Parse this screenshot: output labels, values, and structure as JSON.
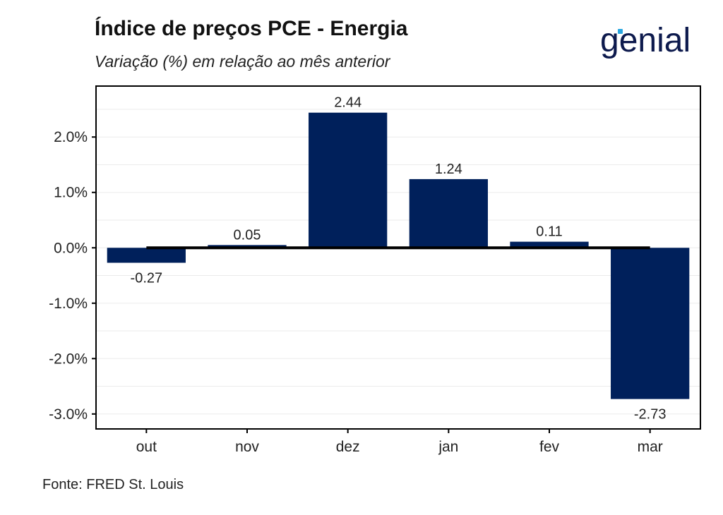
{
  "header": {
    "title": "Índice de preços PCE - Energia",
    "subtitle": "Variação (%) em relação ao mês anterior",
    "logo_text": "genial"
  },
  "footer": {
    "source": "Fonte: FRED St. Louis"
  },
  "colors": {
    "bar": "#00205b",
    "zero_line": "#000000",
    "grid": "#ebebeb",
    "logo": "#0d1a4d",
    "logo_accent": "#2aa7e0"
  },
  "chart_data": {
    "type": "bar",
    "categories": [
      "out",
      "nov",
      "dez",
      "jan",
      "fev",
      "mar"
    ],
    "values": [
      -0.27,
      0.05,
      2.44,
      1.24,
      0.11,
      -2.73
    ],
    "data_labels": [
      "-0.27",
      "0.05",
      "2.44",
      "1.24",
      "0.11",
      "-2.73"
    ],
    "y_ticks": [
      2.0,
      1.0,
      0.0,
      -1.0,
      -2.0,
      -3.0
    ],
    "y_tick_labels": [
      "2.0%",
      "1.0%",
      "0.0%",
      "-1.0%",
      "-2.0%",
      "-3.0%"
    ],
    "ylim": [
      -3.27,
      2.92
    ],
    "grid": true,
    "legend": "none"
  }
}
